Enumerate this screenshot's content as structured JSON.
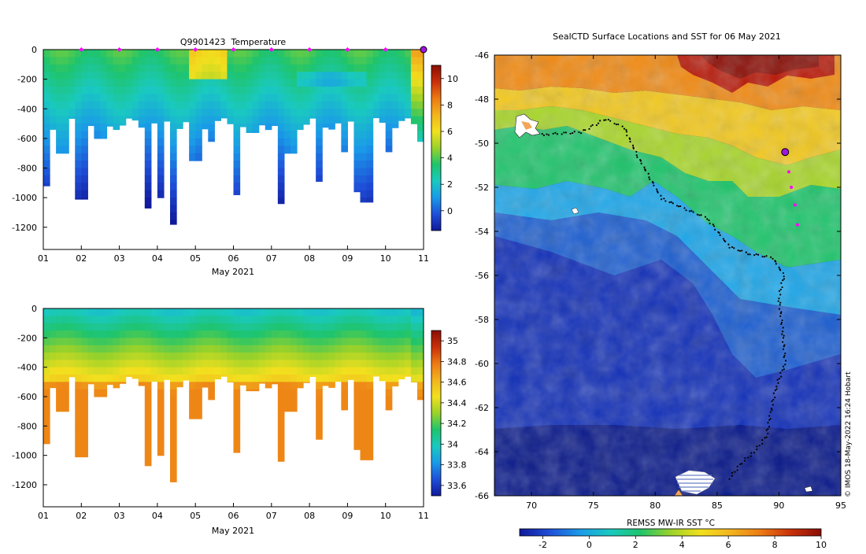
{
  "chart_data": [
    {
      "type": "heatmap",
      "title": "Q9901423  Temperature",
      "xlabel": "May 2021",
      "ylabel": "",
      "x_ticks": [
        "01",
        "02",
        "03",
        "04",
        "05",
        "06",
        "07",
        "08",
        "09",
        "10",
        "11"
      ],
      "xlim": [
        1,
        11
      ],
      "ylim": [
        -1350,
        0
      ],
      "y_ticks": [
        0,
        -200,
        -400,
        -600,
        -800,
        -1000,
        -1200
      ],
      "colorbar": {
        "ticks": [
          0,
          2,
          4,
          6,
          8,
          10
        ],
        "range": [
          -1.5,
          11
        ]
      },
      "markers": {
        "color": "#ff00ff",
        "days": [
          2,
          3,
          4,
          5,
          6,
          7,
          8,
          9,
          10
        ]
      },
      "profiles": [
        {
          "day": 1.05,
          "max_depth": -920
        },
        {
          "day": 1.5,
          "max_depth": -700
        },
        {
          "day": 2.0,
          "max_depth": -1010
        },
        {
          "day": 2.5,
          "max_depth": -600
        },
        {
          "day": 3.0,
          "max_depth": -510
        },
        {
          "day": 3.7,
          "max_depth": -1070
        },
        {
          "day": 4.1,
          "max_depth": -1000
        },
        {
          "day": 4.45,
          "max_depth": -1180
        },
        {
          "day": 5.0,
          "max_depth": -750
        },
        {
          "day": 5.4,
          "max_depth": -620
        },
        {
          "day": 6.1,
          "max_depth": -980
        },
        {
          "day": 6.5,
          "max_depth": -560
        },
        {
          "day": 7.2,
          "max_depth": -1040
        },
        {
          "day": 7.5,
          "max_depth": -700
        },
        {
          "day": 8.3,
          "max_depth": -890
        },
        {
          "day": 8.85,
          "max_depth": -690
        },
        {
          "day": 9.2,
          "max_depth": -960
        },
        {
          "day": 9.5,
          "max_depth": -1030
        },
        {
          "day": 10.1,
          "max_depth": -690
        },
        {
          "day": 10.9,
          "max_depth": -620
        }
      ]
    },
    {
      "type": "heatmap",
      "title": "",
      "xlabel": "May 2021",
      "ylabel": "",
      "x_ticks": [
        "01",
        "02",
        "03",
        "04",
        "05",
        "06",
        "07",
        "08",
        "09",
        "10",
        "11"
      ],
      "xlim": [
        1,
        11
      ],
      "ylim": [
        -1350,
        0
      ],
      "y_ticks": [
        0,
        -200,
        -400,
        -600,
        -800,
        -1000,
        -1200
      ],
      "colorbar": {
        "ticks": [
          "33.6",
          "33.8",
          "34",
          "34.2",
          "34.4",
          "34.6",
          "34.8",
          "35"
        ],
        "range": [
          33.5,
          35.1
        ]
      }
    },
    {
      "type": "heatmap",
      "title": "SealCTD Surface Locations and SST for 06 May 2021",
      "xlabel": "",
      "ylabel": "",
      "x_ticks": [
        70,
        75,
        80,
        85,
        90,
        95
      ],
      "xlim": [
        67,
        95
      ],
      "y_ticks": [
        -46,
        -48,
        -50,
        -52,
        -54,
        -56,
        -58,
        -60,
        -62,
        -64,
        -66
      ],
      "ylim": [
        -66,
        -46
      ],
      "colorbar": {
        "label": "REMSS MW-IR SST °C",
        "ticks": [
          -2,
          0,
          2,
          4,
          6,
          8,
          10
        ],
        "range": [
          -3,
          10
        ]
      },
      "track": [
        [
          86.0,
          -65.2
        ],
        [
          87.0,
          -64.5
        ],
        [
          88.0,
          -64.0
        ],
        [
          89.0,
          -63.3
        ],
        [
          89.4,
          -62.0
        ],
        [
          89.8,
          -61.0
        ],
        [
          90.5,
          -60.0
        ],
        [
          90.3,
          -58.5
        ],
        [
          90.0,
          -57.0
        ],
        [
          90.4,
          -56.0
        ],
        [
          89.5,
          -55.2
        ],
        [
          87.5,
          -55.0
        ],
        [
          86.0,
          -54.7
        ],
        [
          84.2,
          -53.4
        ],
        [
          82.5,
          -53.0
        ],
        [
          80.5,
          -52.5
        ],
        [
          79.5,
          -51.5
        ],
        [
          78.5,
          -50.5
        ],
        [
          77.5,
          -49.3
        ],
        [
          76.0,
          -48.9
        ],
        [
          74.0,
          -49.5
        ],
        [
          71.0,
          -49.6
        ],
        [
          70.0,
          -49.5
        ]
      ],
      "surface_track": [
        [
          90.5,
          -50.4
        ],
        [
          90.8,
          -51.3
        ],
        [
          91.0,
          -52.0
        ],
        [
          91.3,
          -52.8
        ],
        [
          91.5,
          -53.7
        ]
      ],
      "current_position": [
        90.5,
        -50.4
      ]
    }
  ],
  "watermark": "© IMOS 18-May-2022 16:24 Hobart"
}
